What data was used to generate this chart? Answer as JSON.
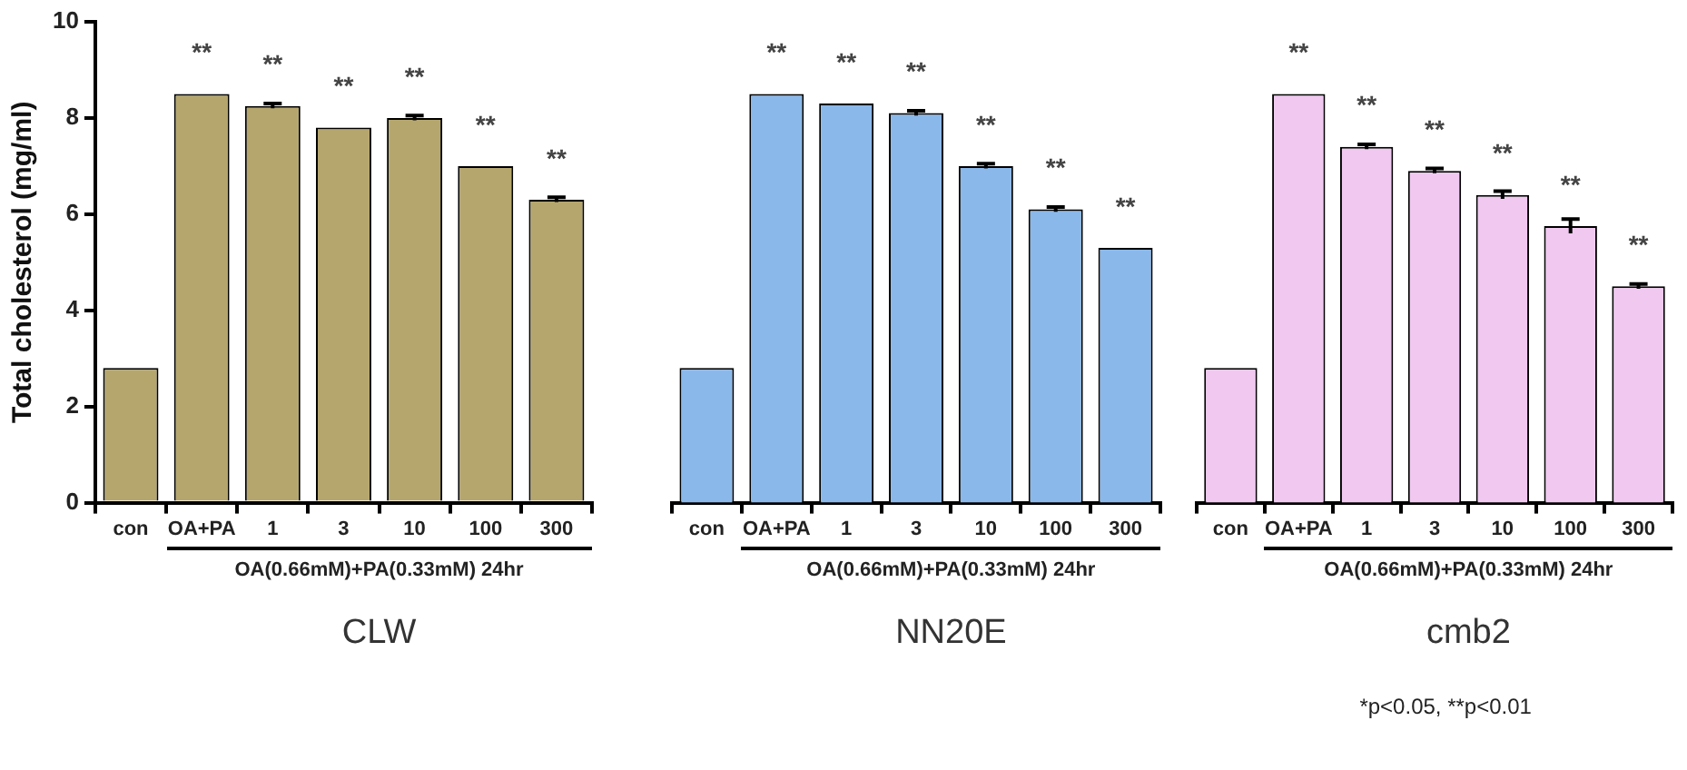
{
  "chart_data": [
    {
      "type": "bar",
      "ylabel": "Total cholesterol (mg/ml)",
      "xlabel": "CLW",
      "categories": [
        "con",
        "OA+PA",
        "1",
        "3",
        "10",
        "100",
        "300"
      ],
      "values": [
        2.8,
        8.5,
        8.25,
        7.8,
        8.0,
        7.0,
        6.3
      ],
      "errors": [
        null,
        null,
        0.05,
        null,
        0.05,
        null,
        0.05
      ],
      "color": "#b5a66e",
      "ylim": [
        0,
        10
      ],
      "yticks": [
        0,
        2,
        4,
        6,
        8,
        10
      ],
      "grid": false,
      "annotations": [
        {
          "text": "**",
          "x": "OA+PA",
          "y": 8.5
        },
        {
          "text": "**",
          "x": "1",
          "y": 8.25
        },
        {
          "text": "**",
          "x": "3",
          "y": 7.8
        },
        {
          "text": "**",
          "x": "10",
          "y": 8.0
        },
        {
          "text": "**",
          "x": "100",
          "y": 7.0
        },
        {
          "text": "**",
          "x": "300",
          "y": 6.3
        },
        "OA(0.66mM)+PA(0.33mM) 24hr"
      ]
    },
    {
      "type": "bar",
      "xlabel": "NN20E",
      "categories": [
        "con",
        "OA+PA",
        "1",
        "3",
        "10",
        "100",
        "300"
      ],
      "values": [
        2.8,
        8.5,
        8.3,
        8.1,
        7.0,
        6.1,
        5.3
      ],
      "errors": [
        null,
        null,
        null,
        0.05,
        0.05,
        0.05,
        null
      ],
      "color": "#8ab8ea",
      "ylim": [
        0,
        10
      ],
      "yticks": [
        0,
        2,
        4,
        6,
        8,
        10
      ],
      "tick_labels": "x",
      "grid": false,
      "annotations": [
        {
          "text": "**",
          "x": "OA+PA",
          "y": 8.5
        },
        {
          "text": "**",
          "x": "1",
          "y": 8.3
        },
        {
          "text": "**",
          "x": "3",
          "y": 8.1
        },
        {
          "text": "**",
          "x": "10",
          "y": 7.0
        },
        {
          "text": "**",
          "x": "100",
          "y": 6.1
        },
        {
          "text": "**",
          "x": "300",
          "y": 5.3
        },
        "OA(0.66mM)+PA(0.33mM) 24hr"
      ]
    },
    {
      "type": "bar",
      "xlabel": "cmb2",
      "categories": [
        "con",
        "OA+PA",
        "1",
        "3",
        "10",
        "100",
        "300"
      ],
      "values": [
        2.8,
        8.5,
        7.4,
        6.9,
        6.4,
        5.75,
        4.5
      ],
      "errors": [
        null,
        null,
        0.05,
        0.05,
        0.08,
        0.15,
        0.05
      ],
      "color": "#f0c8f0",
      "ylim": [
        0,
        10
      ],
      "yticks": [
        0,
        2,
        4,
        6,
        8,
        10
      ],
      "tick_labels": "x",
      "grid": false,
      "annotations": [
        {
          "text": "**",
          "x": "OA+PA",
          "y": 8.5
        },
        {
          "text": "**",
          "x": "1",
          "y": 7.4
        },
        {
          "text": "**",
          "x": "3",
          "y": 6.9
        },
        {
          "text": "**",
          "x": "10",
          "y": 6.4
        },
        {
          "text": "**",
          "x": "100",
          "y": 5.75
        },
        {
          "text": "**",
          "x": "300",
          "y": 4.5
        },
        "OA(0.66mM)+PA(0.33mM) 24hr",
        "*p<0.05, **p<0.01"
      ]
    }
  ]
}
